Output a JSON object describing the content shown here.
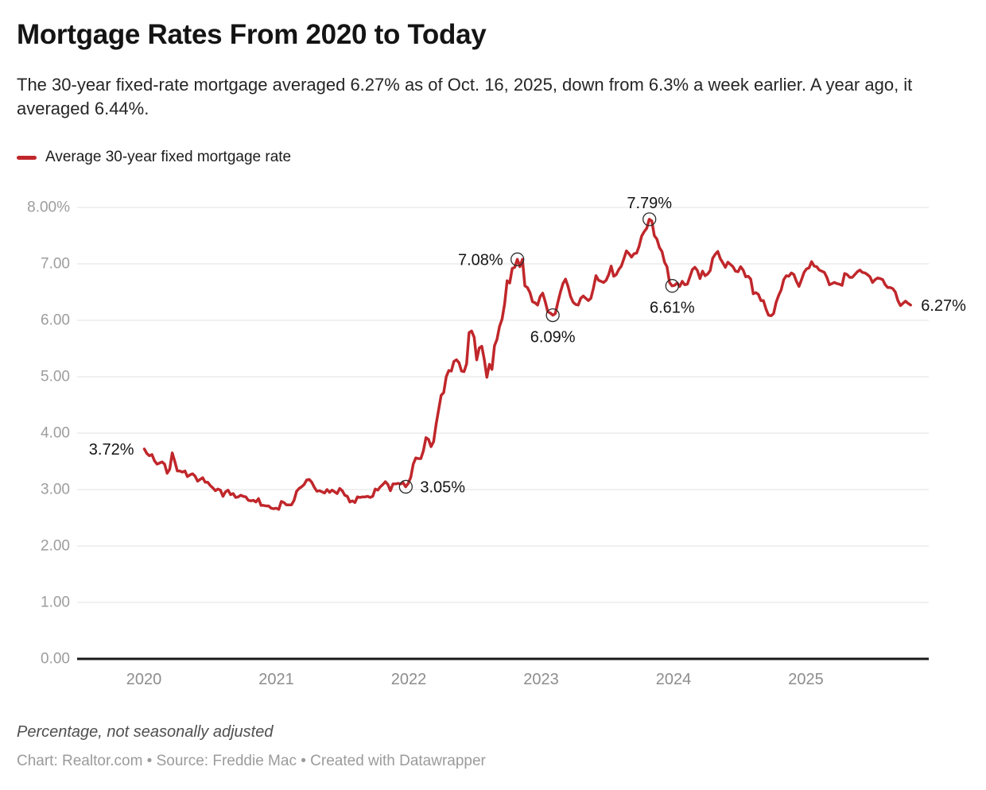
{
  "header": {
    "title": "Mortgage Rates From 2020 to Today",
    "description": "The 30-year fixed-rate mortgage averaged 6.27% as of Oct. 16, 2025, down from 6.3% a week earlier. A year ago, it averaged 6.44%."
  },
  "legend": {
    "label": "Average 30-year fixed mortgage rate",
    "color": "#c0272b"
  },
  "chart_data": {
    "type": "line",
    "title": "Mortgage Rates From 2020 to Today",
    "line_color": "#c0272b",
    "grid_color": "#e0e0e0",
    "baseline_color": "#1a1a1a",
    "y_axis": {
      "range": [
        0,
        8
      ],
      "ticks": [
        {
          "value": 0,
          "label": "0.00"
        },
        {
          "value": 1,
          "label": "1.00"
        },
        {
          "value": 2,
          "label": "2.00"
        },
        {
          "value": 3,
          "label": "3.00"
        },
        {
          "value": 4,
          "label": "4.00"
        },
        {
          "value": 5,
          "label": "5.00"
        },
        {
          "value": 6,
          "label": "6.00"
        },
        {
          "value": 7,
          "label": "7.00"
        },
        {
          "value": 8,
          "label": "8.00%"
        }
      ]
    },
    "x_axis": {
      "ticks": [
        {
          "value": 2020,
          "label": "2020"
        },
        {
          "value": 2021,
          "label": "2021"
        },
        {
          "value": 2022,
          "label": "2022"
        },
        {
          "value": 2023,
          "label": "2023"
        },
        {
          "value": 2024,
          "label": "2024"
        },
        {
          "value": 2025,
          "label": "2025"
        }
      ]
    },
    "series": [
      {
        "name": "Average 30-year fixed mortgage rate",
        "unit": "percent",
        "start_year": 2020.003,
        "interval_years": 0.0191651,
        "values": [
          3.72,
          3.64,
          3.6,
          3.62,
          3.51,
          3.45,
          3.47,
          3.49,
          3.45,
          3.29,
          3.36,
          3.65,
          3.5,
          3.33,
          3.33,
          3.31,
          3.33,
          3.23,
          3.26,
          3.28,
          3.24,
          3.15,
          3.18,
          3.21,
          3.13,
          3.13,
          3.07,
          3.03,
          2.98,
          3.01,
          2.99,
          2.88,
          2.96,
          2.99,
          2.91,
          2.93,
          2.86,
          2.87,
          2.9,
          2.88,
          2.87,
          2.81,
          2.8,
          2.81,
          2.78,
          2.84,
          2.72,
          2.72,
          2.71,
          2.71,
          2.67,
          2.66,
          2.67,
          2.65,
          2.79,
          2.77,
          2.73,
          2.73,
          2.73,
          2.81,
          2.97,
          3.02,
          3.05,
          3.09,
          3.17,
          3.18,
          3.13,
          3.04,
          2.97,
          2.98,
          2.96,
          2.94,
          3.0,
          2.95,
          2.99,
          2.96,
          2.93,
          3.02,
          2.98,
          2.9,
          2.88,
          2.78,
          2.8,
          2.77,
          2.87,
          2.86,
          2.87,
          2.87,
          2.88,
          2.86,
          2.88,
          3.01,
          2.99,
          3.05,
          3.09,
          3.14,
          3.09,
          2.98,
          3.1,
          3.1,
          3.11,
          3.1,
          3.12,
          3.05,
          3.11,
          3.22,
          3.45,
          3.56,
          3.55,
          3.55,
          3.69,
          3.92,
          3.89,
          3.76,
          3.85,
          4.16,
          4.42,
          4.67,
          4.72,
          5.0,
          5.11,
          5.1,
          5.27,
          5.3,
          5.25,
          5.1,
          5.09,
          5.23,
          5.78,
          5.81,
          5.7,
          5.3,
          5.51,
          5.54,
          5.3,
          4.99,
          5.22,
          5.13,
          5.55,
          5.66,
          5.89,
          6.02,
          6.29,
          6.7,
          6.66,
          6.92,
          6.94,
          7.08,
          6.95,
          7.08,
          6.61,
          6.58,
          6.49,
          6.33,
          6.31,
          6.27,
          6.42,
          6.48,
          6.33,
          6.15,
          6.13,
          6.09,
          6.12,
          6.32,
          6.5,
          6.65,
          6.73,
          6.6,
          6.42,
          6.32,
          6.28,
          6.27,
          6.39,
          6.43,
          6.39,
          6.35,
          6.39,
          6.57,
          6.79,
          6.71,
          6.69,
          6.67,
          6.71,
          6.81,
          6.96,
          6.78,
          6.81,
          6.9,
          6.96,
          7.09,
          7.23,
          7.18,
          7.12,
          7.18,
          7.19,
          7.31,
          7.49,
          7.57,
          7.63,
          7.79,
          7.76,
          7.5,
          7.44,
          7.29,
          7.22,
          7.03,
          6.95,
          6.67,
          6.61,
          6.62,
          6.66,
          6.6,
          6.69,
          6.63,
          6.64,
          6.77,
          6.9,
          6.94,
          6.88,
          6.74,
          6.87,
          6.79,
          6.82,
          6.88,
          7.1,
          7.17,
          7.22,
          7.09,
          7.02,
          6.94,
          7.03,
          6.99,
          6.95,
          6.87,
          6.86,
          6.95,
          6.89,
          6.77,
          6.78,
          6.73,
          6.47,
          6.49,
          6.46,
          6.35,
          6.35,
          6.2,
          6.09,
          6.08,
          6.12,
          6.32,
          6.44,
          6.54,
          6.72,
          6.79,
          6.78,
          6.84,
          6.81,
          6.69,
          6.6,
          6.72,
          6.85,
          6.91,
          6.93,
          7.04,
          6.96,
          6.95,
          6.89,
          6.87,
          6.85,
          6.76,
          6.63,
          6.65,
          6.67,
          6.65,
          6.64,
          6.62,
          6.83,
          6.81,
          6.76,
          6.76,
          6.81,
          6.86,
          6.89,
          6.85,
          6.84,
          6.81,
          6.77,
          6.67,
          6.72,
          6.75,
          6.74,
          6.72,
          6.63,
          6.58,
          6.58,
          6.56,
          6.5,
          6.35,
          6.26,
          6.3,
          6.34,
          6.3,
          6.27
        ]
      }
    ],
    "annotations": [
      {
        "label": "3.72%",
        "x": 2020.003,
        "y": 3.72,
        "marker": false,
        "position": "left"
      },
      {
        "label": "3.05%",
        "x": 2021.978,
        "y": 3.05,
        "marker": true,
        "position": "right"
      },
      {
        "label": "7.08%",
        "x": 2022.821,
        "y": 7.08,
        "marker": true,
        "position": "left"
      },
      {
        "label": "6.09%",
        "x": 2023.088,
        "y": 6.09,
        "marker": true,
        "position": "below"
      },
      {
        "label": "7.79%",
        "x": 2023.818,
        "y": 7.79,
        "marker": true,
        "position": "above"
      },
      {
        "label": "6.61%",
        "x": 2023.99,
        "y": 6.61,
        "marker": true,
        "position": "below"
      },
      {
        "label": "6.27%",
        "x": 2025.791,
        "y": 6.27,
        "marker": false,
        "position": "right"
      }
    ]
  },
  "footer": {
    "note": "Percentage, not seasonally adjusted",
    "byline": "Chart: Realtor.com • Source: Freddie Mac • Created with Datawrapper"
  }
}
